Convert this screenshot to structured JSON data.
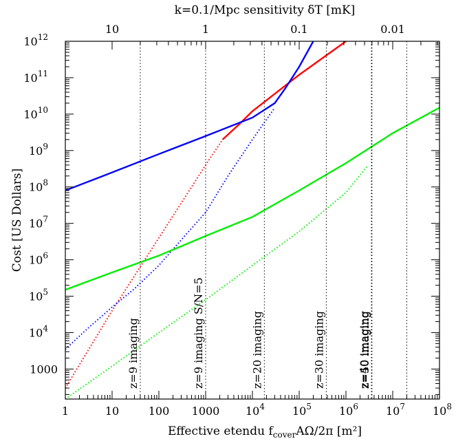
{
  "chart_data": {
    "type": "line",
    "top_axis_title": "k=0.1/Mpc sensitivity δT [mK]",
    "xlabel": "Effective etendu",
    "xlabel_sub": "cover",
    "xlabel_rest": "AΩ/2π [m²]",
    "xlabel_f": "f",
    "ylabel": "Cost [US Dollars]",
    "x_scale": "log",
    "y_scale": "log",
    "xlim": [
      1,
      100000000
    ],
    "ylim": [
      150,
      1000000000000
    ],
    "x_ticks": [
      {
        "v": 1,
        "label": "1"
      },
      {
        "v": 10,
        "label": "10"
      },
      {
        "v": 100,
        "label": "100"
      },
      {
        "v": 1000,
        "label": "1000"
      },
      {
        "v": 10000,
        "label": "10",
        "exp": "4"
      },
      {
        "v": 100000,
        "label": "10",
        "exp": "5"
      },
      {
        "v": 1000000,
        "label": "10",
        "exp": "6"
      },
      {
        "v": 10000000,
        "label": "10",
        "exp": "7"
      },
      {
        "v": 100000000,
        "label": "10",
        "exp": "8"
      }
    ],
    "y_ticks": [
      {
        "v": 1000,
        "label": "1000"
      },
      {
        "v": 10000,
        "label": "10",
        "exp": "4"
      },
      {
        "v": 100000,
        "label": "10",
        "exp": "5"
      },
      {
        "v": 1000000,
        "label": "10",
        "exp": "6"
      },
      {
        "v": 10000000,
        "label": "10",
        "exp": "7"
      },
      {
        "v": 100000000,
        "label": "10",
        "exp": "8"
      },
      {
        "v": 1000000000,
        "label": "10",
        "exp": "9"
      },
      {
        "v": 10000000000,
        "label": "10",
        "exp": "10"
      },
      {
        "v": 100000000000,
        "label": "10",
        "exp": "11"
      },
      {
        "v": 1000000000000,
        "label": "10",
        "exp": "12"
      }
    ],
    "top_ticks": [
      {
        "x": 10,
        "label": "10"
      },
      {
        "x": 1000,
        "label": "1"
      },
      {
        "x": 100000,
        "label": "0.1"
      },
      {
        "x": 10000000,
        "label": "0.01"
      }
    ],
    "vlines": [
      {
        "x": 40,
        "label": "z=9 imaging"
      },
      {
        "x": 1000,
        "label": "z=9 imaging S/N=5"
      },
      {
        "x": 18000,
        "label": "z=20 imaging"
      },
      {
        "x": 380000,
        "label": "z=30 imaging"
      },
      {
        "x": 3500000,
        "label": "z=40 imaging"
      },
      {
        "x": 3600000,
        "label": "z=50 imaging"
      },
      {
        "x": 20000000,
        "label": ""
      }
    ],
    "series": [
      {
        "color": "#ff0000",
        "style": "dotted",
        "x": [
          1,
          10,
          100,
          1000,
          2300
        ],
        "y": [
          300,
          40000,
          4000000,
          400000000,
          2000000000
        ]
      },
      {
        "color": "#ff0000",
        "style": "solid",
        "x": [
          2300,
          5000,
          10000,
          50000,
          100000,
          1000000
        ],
        "y": [
          2000000000,
          5000000000,
          12000000000,
          60000000000,
          120000000000,
          1000000000000
        ]
      },
      {
        "color": "#0000ff",
        "style": "solid",
        "x": [
          1,
          10,
          100,
          1000,
          10000,
          30000,
          50000,
          100000,
          200000
        ],
        "y": [
          80000000,
          250000000,
          800000000,
          2500000000,
          8000000000,
          20000000000,
          50000000000,
          200000000000,
          1000000000000
        ]
      },
      {
        "color": "#0000ff",
        "style": "dotted",
        "x": [
          1,
          3,
          10,
          30,
          100,
          300,
          1000,
          3000,
          10000,
          30000
        ],
        "y": [
          3500,
          13000,
          50000,
          160000,
          700000,
          3500000,
          20000000,
          200000000,
          2000000000,
          15000000000
        ]
      },
      {
        "color": "#00ee00",
        "style": "solid",
        "x": [
          1,
          10,
          100,
          1000,
          10000,
          100000,
          1000000,
          10000000,
          100000000
        ],
        "y": [
          150000,
          450000,
          1300000,
          4500000,
          15000000,
          80000000,
          450000000,
          3000000000,
          15000000000
        ]
      },
      {
        "color": "#00ee00",
        "style": "dotted",
        "x": [
          1,
          10,
          100,
          1000,
          10000,
          100000,
          1000000,
          3000000
        ],
        "y": [
          150,
          1200,
          10000,
          80000,
          700000,
          6000000,
          70000000,
          400000000
        ]
      }
    ]
  }
}
